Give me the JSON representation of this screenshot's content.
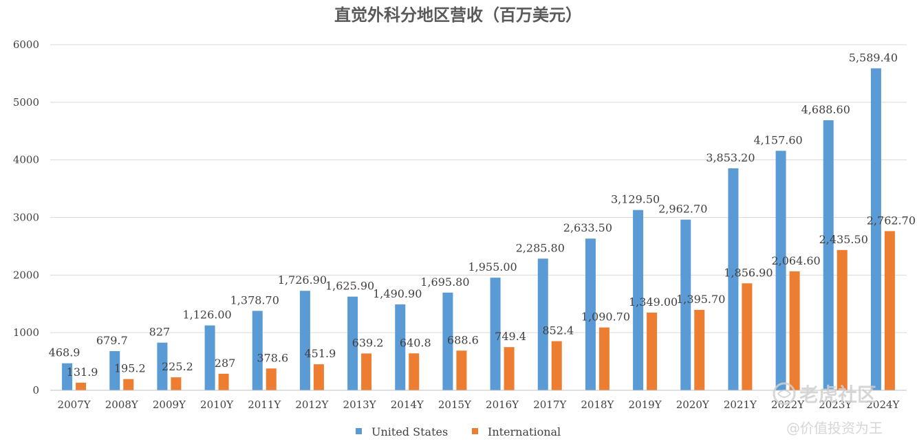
{
  "chart_data": {
    "type": "bar",
    "title": "直觉外科分地区营收（百万美元）",
    "categories": [
      "2007Y",
      "2008Y",
      "2009Y",
      "2010Y",
      "2011Y",
      "2012Y",
      "2013Y",
      "2014Y",
      "2015Y",
      "2016Y",
      "2017Y",
      "2018Y",
      "2019Y",
      "2020Y",
      "2021Y",
      "2022Y",
      "2023Y",
      "2024Y"
    ],
    "series": [
      {
        "name": "United States",
        "color": "#5B9BD5",
        "values": [
          468.9,
          679.7,
          827,
          1126.0,
          1378.7,
          1726.9,
          1625.9,
          1490.9,
          1695.8,
          1955.0,
          2285.8,
          2633.5,
          3129.5,
          2962.7,
          3853.2,
          4157.6,
          4688.6,
          5589.4
        ],
        "labels": [
          "468.9",
          "679.7",
          "827",
          "1,126.00",
          "1,378.70",
          "1,726.90",
          "1,625.90",
          "1,490.90",
          "1,695.80",
          "1,955.00",
          "2,285.80",
          "2,633.50",
          "3,129.50",
          "2,962.70",
          "3,853.20",
          "4,157.60",
          "4,688.60",
          "5,589.40"
        ]
      },
      {
        "name": "International",
        "color": "#ED7D31",
        "values": [
          131.9,
          195.2,
          225.2,
          287,
          378.6,
          451.9,
          639.2,
          640.8,
          688.6,
          749.4,
          852.4,
          1090.7,
          1349.0,
          1395.7,
          1856.9,
          2064.6,
          2435.5,
          2762.7
        ],
        "labels": [
          "131.9",
          "195.2",
          "225.2",
          "287",
          "378.6",
          "451.9",
          "639.2",
          "640.8",
          "688.6",
          "749.4",
          "852.4",
          "1,090.70",
          "1,349.00",
          "1,395.70",
          "1,856.90",
          "2,064.60",
          "2,435.50",
          "2,762.70"
        ]
      }
    ],
    "ylim": [
      0,
      6000
    ],
    "yticks": [
      "0",
      "1000",
      "2000",
      "3000",
      "4000",
      "5000",
      "6000"
    ],
    "ytick_values": [
      0,
      1000,
      2000,
      3000,
      4000,
      5000,
      6000
    ],
    "grid": true,
    "legend": "bottom",
    "xlabel": "",
    "ylabel": ""
  },
  "watermark": {
    "brand": "老虎社区",
    "author": "@价值投资为王",
    "icon": "tiger-logo-icon"
  }
}
